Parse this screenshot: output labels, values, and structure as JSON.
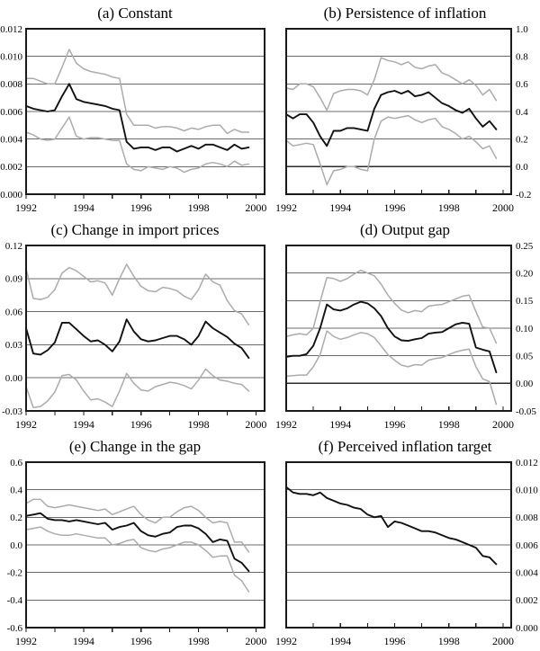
{
  "figure": {
    "colors": {
      "border": "#1a1a1a",
      "gridline": "#6b6b6b",
      "zero_line": "#2b2b2b",
      "band": "#ababab",
      "line": "#111111",
      "tick": "#1a1a1a",
      "background": "#ffffff"
    },
    "x_axis": {
      "domain": [
        1992,
        2000.3
      ],
      "ticks": [
        1992,
        1993,
        1994,
        1995,
        1996,
        1997,
        1998,
        1999,
        2000
      ],
      "tick_labels": [
        "1992",
        "",
        "1994",
        "",
        "1996",
        "",
        "1998",
        "",
        "2000"
      ]
    }
  },
  "chart_data": [
    {
      "type": "line",
      "title": "(a) Constant",
      "x_start": 1992,
      "x_step": 0.25,
      "y_axis": {
        "side": "left",
        "min": 0,
        "max": 0.012,
        "ticks": [
          0,
          0.002,
          0.004,
          0.006,
          0.008,
          0.01,
          0.012
        ],
        "tick_labels": [
          "0.000",
          "0.002",
          "0.004",
          "0.006",
          "0.008",
          "0.010",
          "0.012"
        ]
      },
      "zero_axis": false,
      "grid": true,
      "legend": "none",
      "series": [
        {
          "name": "upper band",
          "role": "band",
          "values": [
            0.0084,
            0.0084,
            0.0082,
            0.008,
            0.008,
            0.0092,
            0.0105,
            0.0095,
            0.0091,
            0.0089,
            0.0088,
            0.0087,
            0.0085,
            0.0084,
            0.0058,
            0.005,
            0.005,
            0.005,
            0.0048,
            0.0049,
            0.0049,
            0.0048,
            0.0046,
            0.0048,
            0.0047,
            0.0049,
            0.005,
            0.005,
            0.0044,
            0.0047,
            0.0045,
            0.0045
          ]
        },
        {
          "name": "estimate",
          "role": "estimate",
          "values": [
            0.0064,
            0.0062,
            0.0061,
            0.006,
            0.0061,
            0.0071,
            0.008,
            0.0069,
            0.0067,
            0.0066,
            0.0065,
            0.0064,
            0.0062,
            0.0061,
            0.0038,
            0.0033,
            0.0034,
            0.0034,
            0.0032,
            0.0034,
            0.0034,
            0.0031,
            0.0033,
            0.0035,
            0.0033,
            0.0036,
            0.0036,
            0.0034,
            0.0032,
            0.0036,
            0.0033,
            0.0034
          ]
        },
        {
          "name": "lower band",
          "role": "band",
          "values": [
            0.0045,
            0.0043,
            0.004,
            0.0039,
            0.004,
            0.0048,
            0.0056,
            0.0042,
            0.004,
            0.0041,
            0.0041,
            0.004,
            0.0039,
            0.0039,
            0.0022,
            0.0018,
            0.0017,
            0.002,
            0.0019,
            0.0018,
            0.002,
            0.0019,
            0.0016,
            0.0018,
            0.0019,
            0.0022,
            0.0023,
            0.0022,
            0.002,
            0.0024,
            0.0021,
            0.0022
          ]
        }
      ]
    },
    {
      "type": "line",
      "title": "(b) Persistence of inflation",
      "x_start": 1992,
      "x_step": 0.25,
      "y_axis": {
        "side": "right",
        "min": -0.2,
        "max": 1.0,
        "ticks": [
          -0.2,
          0.0,
          0.2,
          0.4,
          0.6,
          0.8,
          1.0
        ],
        "tick_labels": [
          "-0.2",
          "0.0",
          "0.2",
          "0.4",
          "0.6",
          "0.8",
          "1.0"
        ]
      },
      "zero_axis": true,
      "grid": true,
      "legend": "none",
      "series": [
        {
          "name": "upper band",
          "role": "band",
          "values": [
            0.57,
            0.56,
            0.6,
            0.6,
            0.58,
            0.5,
            0.41,
            0.53,
            0.55,
            0.56,
            0.56,
            0.55,
            0.52,
            0.63,
            0.79,
            0.77,
            0.76,
            0.74,
            0.76,
            0.72,
            0.71,
            0.73,
            0.74,
            0.68,
            0.66,
            0.63,
            0.6,
            0.63,
            0.59,
            0.52,
            0.56,
            0.48
          ]
        },
        {
          "name": "estimate",
          "role": "estimate",
          "values": [
            0.38,
            0.35,
            0.38,
            0.38,
            0.32,
            0.22,
            0.15,
            0.26,
            0.26,
            0.28,
            0.28,
            0.27,
            0.26,
            0.42,
            0.52,
            0.54,
            0.55,
            0.53,
            0.55,
            0.51,
            0.52,
            0.54,
            0.5,
            0.46,
            0.44,
            0.41,
            0.39,
            0.42,
            0.35,
            0.29,
            0.33,
            0.27
          ]
        },
        {
          "name": "lower band",
          "role": "band",
          "values": [
            0.19,
            0.15,
            0.16,
            0.17,
            0.16,
            0.02,
            -0.13,
            -0.03,
            -0.02,
            0.0,
            0.0,
            -0.02,
            -0.03,
            0.2,
            0.33,
            0.36,
            0.35,
            0.36,
            0.37,
            0.34,
            0.32,
            0.34,
            0.35,
            0.29,
            0.27,
            0.24,
            0.2,
            0.22,
            0.18,
            0.13,
            0.15,
            0.06
          ]
        }
      ]
    },
    {
      "type": "line",
      "title": "(c) Change in import prices",
      "x_start": 1992,
      "x_step": 0.25,
      "y_axis": {
        "side": "left",
        "min": -0.03,
        "max": 0.12,
        "ticks": [
          -0.03,
          0.0,
          0.03,
          0.06,
          0.09,
          0.12
        ],
        "tick_labels": [
          "-0.03",
          "0.00",
          "0.03",
          "0.06",
          "0.09",
          "0.12"
        ]
      },
      "zero_axis": false,
      "grid": true,
      "legend": "none",
      "series": [
        {
          "name": "upper band",
          "role": "band",
          "values": [
            0.099,
            0.072,
            0.071,
            0.073,
            0.08,
            0.095,
            0.1,
            0.097,
            0.092,
            0.087,
            0.088,
            0.086,
            0.075,
            0.09,
            0.103,
            0.092,
            0.083,
            0.079,
            0.078,
            0.082,
            0.081,
            0.079,
            0.074,
            0.071,
            0.08,
            0.094,
            0.087,
            0.084,
            0.07,
            0.061,
            0.058,
            0.048
          ]
        },
        {
          "name": "estimate",
          "role": "estimate",
          "values": [
            0.045,
            0.022,
            0.021,
            0.025,
            0.032,
            0.05,
            0.05,
            0.044,
            0.038,
            0.033,
            0.034,
            0.03,
            0.024,
            0.033,
            0.053,
            0.042,
            0.035,
            0.033,
            0.034,
            0.036,
            0.038,
            0.038,
            0.035,
            0.03,
            0.038,
            0.051,
            0.045,
            0.041,
            0.037,
            0.031,
            0.027,
            0.018
          ]
        },
        {
          "name": "lower band",
          "role": "band",
          "values": [
            -0.008,
            -0.027,
            -0.026,
            -0.021,
            -0.013,
            0.002,
            0.003,
            -0.002,
            -0.012,
            -0.02,
            -0.019,
            -0.022,
            -0.026,
            -0.012,
            0.004,
            -0.005,
            -0.011,
            -0.012,
            -0.008,
            -0.006,
            -0.004,
            -0.005,
            -0.007,
            -0.01,
            -0.002,
            0.008,
            0.002,
            -0.002,
            -0.003,
            -0.005,
            -0.006,
            -0.012
          ]
        }
      ]
    },
    {
      "type": "line",
      "title": "(d) Output gap",
      "x_start": 1992,
      "x_step": 0.25,
      "y_axis": {
        "side": "right",
        "min": -0.05,
        "max": 0.25,
        "ticks": [
          -0.05,
          0.0,
          0.05,
          0.1,
          0.15,
          0.2,
          0.25
        ],
        "tick_labels": [
          "-0.05",
          "0.00",
          "0.05",
          "0.10",
          "0.15",
          "0.20",
          "0.25"
        ]
      },
      "zero_axis": true,
      "grid": true,
      "legend": "none",
      "series": [
        {
          "name": "upper band",
          "role": "band",
          "values": [
            0.085,
            0.088,
            0.09,
            0.088,
            0.1,
            0.148,
            0.192,
            0.19,
            0.185,
            0.19,
            0.198,
            0.205,
            0.2,
            0.195,
            0.18,
            0.16,
            0.145,
            0.133,
            0.128,
            0.132,
            0.13,
            0.14,
            0.142,
            0.143,
            0.148,
            0.153,
            0.158,
            0.16,
            0.13,
            0.102,
            0.1,
            0.073
          ]
        },
        {
          "name": "estimate",
          "role": "estimate",
          "values": [
            0.048,
            0.05,
            0.05,
            0.053,
            0.068,
            0.1,
            0.143,
            0.134,
            0.132,
            0.136,
            0.143,
            0.148,
            0.145,
            0.136,
            0.122,
            0.1,
            0.085,
            0.078,
            0.077,
            0.08,
            0.082,
            0.09,
            0.092,
            0.093,
            0.1,
            0.107,
            0.11,
            0.108,
            0.065,
            0.061,
            0.058,
            0.02
          ]
        },
        {
          "name": "lower band",
          "role": "band",
          "values": [
            0.013,
            0.014,
            0.015,
            0.015,
            0.03,
            0.052,
            0.095,
            0.085,
            0.08,
            0.083,
            0.088,
            0.092,
            0.09,
            0.083,
            0.068,
            0.052,
            0.042,
            0.033,
            0.03,
            0.034,
            0.033,
            0.042,
            0.045,
            0.047,
            0.052,
            0.057,
            0.06,
            0.062,
            0.03,
            0.008,
            0.003,
            -0.038
          ]
        }
      ]
    },
    {
      "type": "line",
      "title": "(e) Change in the gap",
      "x_start": 1992,
      "x_step": 0.25,
      "y_axis": {
        "side": "left",
        "min": -0.6,
        "max": 0.6,
        "ticks": [
          -0.6,
          -0.4,
          -0.2,
          0.0,
          0.2,
          0.4,
          0.6
        ],
        "tick_labels": [
          "-0.6",
          "-0.4",
          "-0.2",
          "0.0",
          "0.2",
          "0.4",
          "0.6"
        ]
      },
      "zero_axis": false,
      "grid": true,
      "legend": "none",
      "series": [
        {
          "name": "upper band",
          "role": "band",
          "values": [
            0.3,
            0.33,
            0.33,
            0.28,
            0.27,
            0.28,
            0.29,
            0.28,
            0.27,
            0.26,
            0.25,
            0.26,
            0.22,
            0.24,
            0.26,
            0.28,
            0.22,
            0.18,
            0.16,
            0.2,
            0.2,
            0.24,
            0.27,
            0.28,
            0.25,
            0.2,
            0.16,
            0.17,
            0.16,
            0.02,
            0.02,
            -0.05
          ]
        },
        {
          "name": "estimate",
          "role": "estimate",
          "values": [
            0.21,
            0.22,
            0.23,
            0.19,
            0.18,
            0.18,
            0.17,
            0.18,
            0.17,
            0.16,
            0.15,
            0.16,
            0.11,
            0.13,
            0.14,
            0.16,
            0.1,
            0.07,
            0.06,
            0.08,
            0.09,
            0.13,
            0.14,
            0.14,
            0.12,
            0.08,
            0.02,
            0.04,
            0.03,
            -0.1,
            -0.13,
            -0.19
          ]
        },
        {
          "name": "lower band",
          "role": "band",
          "values": [
            0.11,
            0.12,
            0.13,
            0.1,
            0.08,
            0.07,
            0.07,
            0.08,
            0.07,
            0.06,
            0.05,
            0.05,
            0.0,
            0.01,
            0.03,
            0.04,
            -0.02,
            -0.04,
            -0.05,
            -0.03,
            -0.02,
            0.0,
            0.02,
            0.02,
            0.0,
            -0.04,
            -0.09,
            -0.08,
            -0.08,
            -0.22,
            -0.26,
            -0.34
          ]
        }
      ]
    },
    {
      "type": "line",
      "title": "(f) Perceived inflation target",
      "x_start": 1992,
      "x_step": 0.25,
      "y_axis": {
        "side": "right",
        "min": 0,
        "max": 0.012,
        "ticks": [
          0,
          0.002,
          0.004,
          0.006,
          0.008,
          0.01,
          0.012
        ],
        "tick_labels": [
          "0.000",
          "0.002",
          "0.004",
          "0.006",
          "0.008",
          "0.010",
          "0.012"
        ]
      },
      "zero_axis": false,
      "grid": true,
      "legend": "none",
      "series": [
        {
          "name": "estimate",
          "role": "estimate",
          "values": [
            0.0102,
            0.0098,
            0.0097,
            0.0097,
            0.0096,
            0.0098,
            0.0094,
            0.0092,
            0.009,
            0.0089,
            0.0087,
            0.0086,
            0.0082,
            0.008,
            0.0081,
            0.0073,
            0.0077,
            0.0076,
            0.0074,
            0.0072,
            0.007,
            0.007,
            0.0069,
            0.0067,
            0.0065,
            0.0064,
            0.0062,
            0.006,
            0.0058,
            0.0052,
            0.0051,
            0.0046
          ]
        }
      ]
    }
  ]
}
